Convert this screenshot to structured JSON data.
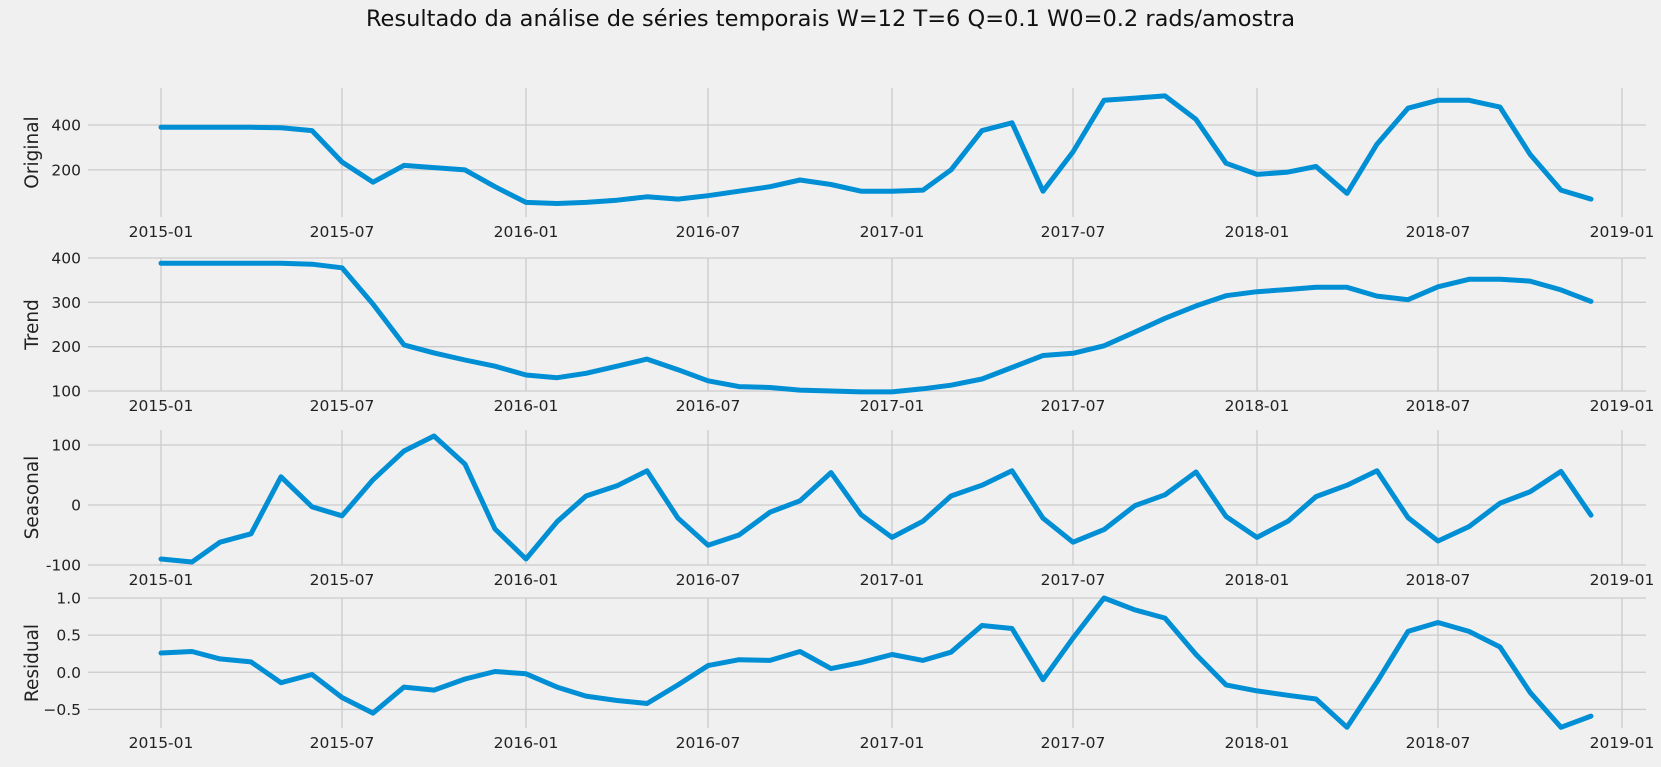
{
  "title": "Resultado da análise de séries temporais W=12 T=6 Q=0.1 W0=0.2 rads/amostra",
  "colors": {
    "line": "#008fd5",
    "grid": "#cbcbcb",
    "background": "#f0f0f0"
  },
  "chart_data": [
    {
      "type": "line",
      "ylabel": "Original",
      "x_start": "2015-01",
      "x_frequency": "monthly",
      "xlim": [
        "2014-10-20",
        "2019-01-25"
      ],
      "x_ticks": [
        "2015-01",
        "2015-07",
        "2016-01",
        "2016-07",
        "2017-01",
        "2017-07",
        "2018-01",
        "2018-07",
        "2019-01"
      ],
      "ylim": [
        -10,
        565
      ],
      "y_ticks": [
        200,
        400
      ],
      "grid": true,
      "series": [
        {
          "values": [
            390,
            390,
            390,
            390,
            388,
            375,
            235,
            145,
            220,
            210,
            200,
            125,
            55,
            50,
            55,
            65,
            80,
            70,
            85,
            105,
            125,
            155,
            135,
            105,
            105,
            110,
            200,
            375,
            410,
            105,
            280,
            510,
            520,
            530,
            425,
            230,
            180,
            190,
            215,
            95,
            315,
            475,
            510,
            510,
            480,
            270,
            110,
            70
          ]
        }
      ]
    },
    {
      "type": "line",
      "ylabel": "Trend",
      "x_start": "2015-01",
      "x_frequency": "monthly",
      "xlim": [
        "2014-10-20",
        "2019-01-25"
      ],
      "x_ticks": [
        "2015-01",
        "2015-07",
        "2016-01",
        "2016-07",
        "2017-01",
        "2017-07",
        "2018-01",
        "2018-07",
        "2019-01"
      ],
      "ylim": [
        100,
        400
      ],
      "y_ticks": [
        100,
        200,
        300,
        400
      ],
      "grid": true,
      "series": [
        {
          "values": [
            388,
            388,
            388,
            388,
            388,
            386,
            378,
            296,
            204,
            186,
            170,
            156,
            136,
            130,
            140,
            156,
            172,
            148,
            123,
            110,
            108,
            102,
            100,
            98,
            98,
            105,
            113,
            127,
            153,
            180,
            185,
            202,
            233,
            264,
            292,
            315,
            324,
            329,
            334,
            334,
            314,
            306,
            335,
            352,
            352,
            348,
            328,
            302
          ]
        }
      ]
    },
    {
      "type": "line",
      "ylabel": "Seasonal",
      "x_start": "2015-01",
      "x_frequency": "monthly",
      "xlim": [
        "2014-10-20",
        "2019-01-25"
      ],
      "x_ticks": [
        "2015-01",
        "2015-07",
        "2016-01",
        "2016-07",
        "2017-01",
        "2017-07",
        "2018-01",
        "2018-07",
        "2019-01"
      ],
      "ylim": [
        -100,
        125
      ],
      "y_ticks": [
        -100,
        0,
        100
      ],
      "grid": true,
      "series": [
        {
          "values": [
            -90,
            -95,
            -62,
            -48,
            47,
            -3,
            -18,
            42,
            90,
            115,
            68,
            -40,
            -90,
            -28,
            15,
            32,
            57,
            -22,
            -67,
            -50,
            -12,
            7,
            54,
            -16,
            -54,
            -27,
            15,
            33,
            57,
            -22,
            -62,
            -41,
            -1,
            17,
            55,
            -19,
            -54,
            -27,
            14,
            33,
            57,
            -21,
            -60,
            -36,
            3,
            22,
            56,
            -17
          ]
        }
      ]
    },
    {
      "type": "line",
      "ylabel": "Residual",
      "x_start": "2015-01",
      "x_frequency": "monthly",
      "xlim": [
        "2014-10-20",
        "2019-01-25"
      ],
      "x_ticks": [
        "2015-01",
        "2015-07",
        "2016-01",
        "2016-07",
        "2017-01",
        "2017-07",
        "2018-01",
        "2018-07",
        "2019-01"
      ],
      "ylim": [
        -0.75,
        1.0
      ],
      "y_ticks": [
        -0.5,
        0.0,
        0.5,
        1.0
      ],
      "y_tick_labels": [
        "−0.5",
        "0.0",
        "0.5",
        "1.0"
      ],
      "grid": true,
      "series": [
        {
          "values": [
            0.26,
            0.28,
            0.18,
            0.14,
            -0.14,
            -0.03,
            -0.34,
            -0.55,
            -0.2,
            -0.24,
            -0.09,
            0.01,
            -0.02,
            -0.2,
            -0.32,
            -0.38,
            -0.42,
            -0.17,
            0.09,
            0.17,
            0.16,
            0.28,
            0.05,
            0.13,
            0.24,
            0.16,
            0.27,
            0.63,
            0.59,
            -0.1,
            0.46,
            1.0,
            0.84,
            0.73,
            0.24,
            -0.17,
            -0.25,
            -0.31,
            -0.36,
            -0.74,
            -0.13,
            0.55,
            0.67,
            0.55,
            0.34,
            -0.27,
            -0.74,
            -0.59
          ]
        }
      ]
    }
  ]
}
